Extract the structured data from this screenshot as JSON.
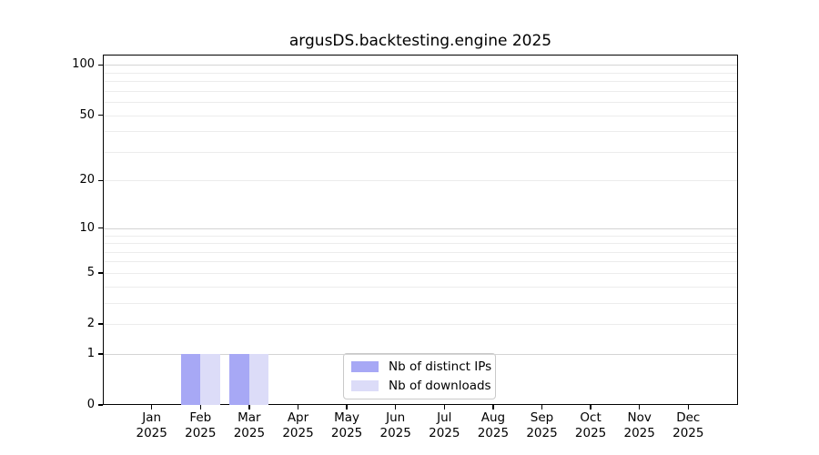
{
  "title": "argusDS.backtesting.engine 2025",
  "chart_data": {
    "type": "bar",
    "title": "argusDS.backtesting.engine 2025",
    "categories": [
      "Jan 2025",
      "Feb 2025",
      "Mar 2025",
      "Apr 2025",
      "May 2025",
      "Jun 2025",
      "Jul 2025",
      "Aug 2025",
      "Sep 2025",
      "Oct 2025",
      "Nov 2025",
      "Dec 2025"
    ],
    "x_tick_month": [
      "Jan",
      "Feb",
      "Mar",
      "Apr",
      "May",
      "Jun",
      "Jul",
      "Aug",
      "Sep",
      "Oct",
      "Nov",
      "Dec"
    ],
    "x_tick_year": "2025",
    "series": [
      {
        "name": "Nb of distinct IPs",
        "color": "#a7a8f5",
        "values": [
          0,
          1,
          1,
          0,
          0,
          0,
          0,
          0,
          0,
          0,
          0,
          0
        ]
      },
      {
        "name": "Nb of downloads",
        "color": "#dcdcf8",
        "values": [
          0,
          1,
          1,
          0,
          0,
          0,
          0,
          0,
          0,
          0,
          0,
          0
        ]
      }
    ],
    "y_axis": {
      "scale": "log10(1+x)",
      "tick_values": [
        0,
        1,
        2,
        5,
        10,
        20,
        50,
        100
      ],
      "tick_labels": [
        "0",
        "1",
        "2",
        "5",
        "10",
        "20",
        "50",
        "100"
      ],
      "major_gridlines": [
        1,
        10,
        100
      ],
      "minor_gridlines": [
        2,
        3,
        4,
        5,
        6,
        7,
        8,
        9,
        20,
        30,
        40,
        50,
        60,
        70,
        80,
        90
      ],
      "range": [
        0,
        115
      ]
    },
    "grid": "horizontal-only",
    "legend": {
      "position": "inside-bottom-center",
      "items": [
        "Nb of distinct IPs",
        "Nb of downloads"
      ]
    }
  },
  "colors": {
    "background": "#ffffff",
    "axis_box": "#000000",
    "text": "#000000",
    "major_grid": "#d4d4d4",
    "minor_grid": "#ececec",
    "bar_distinct_ips": "#a7a8f5",
    "bar_downloads": "#dcdcf8",
    "legend_border": "#c9c9c9"
  }
}
